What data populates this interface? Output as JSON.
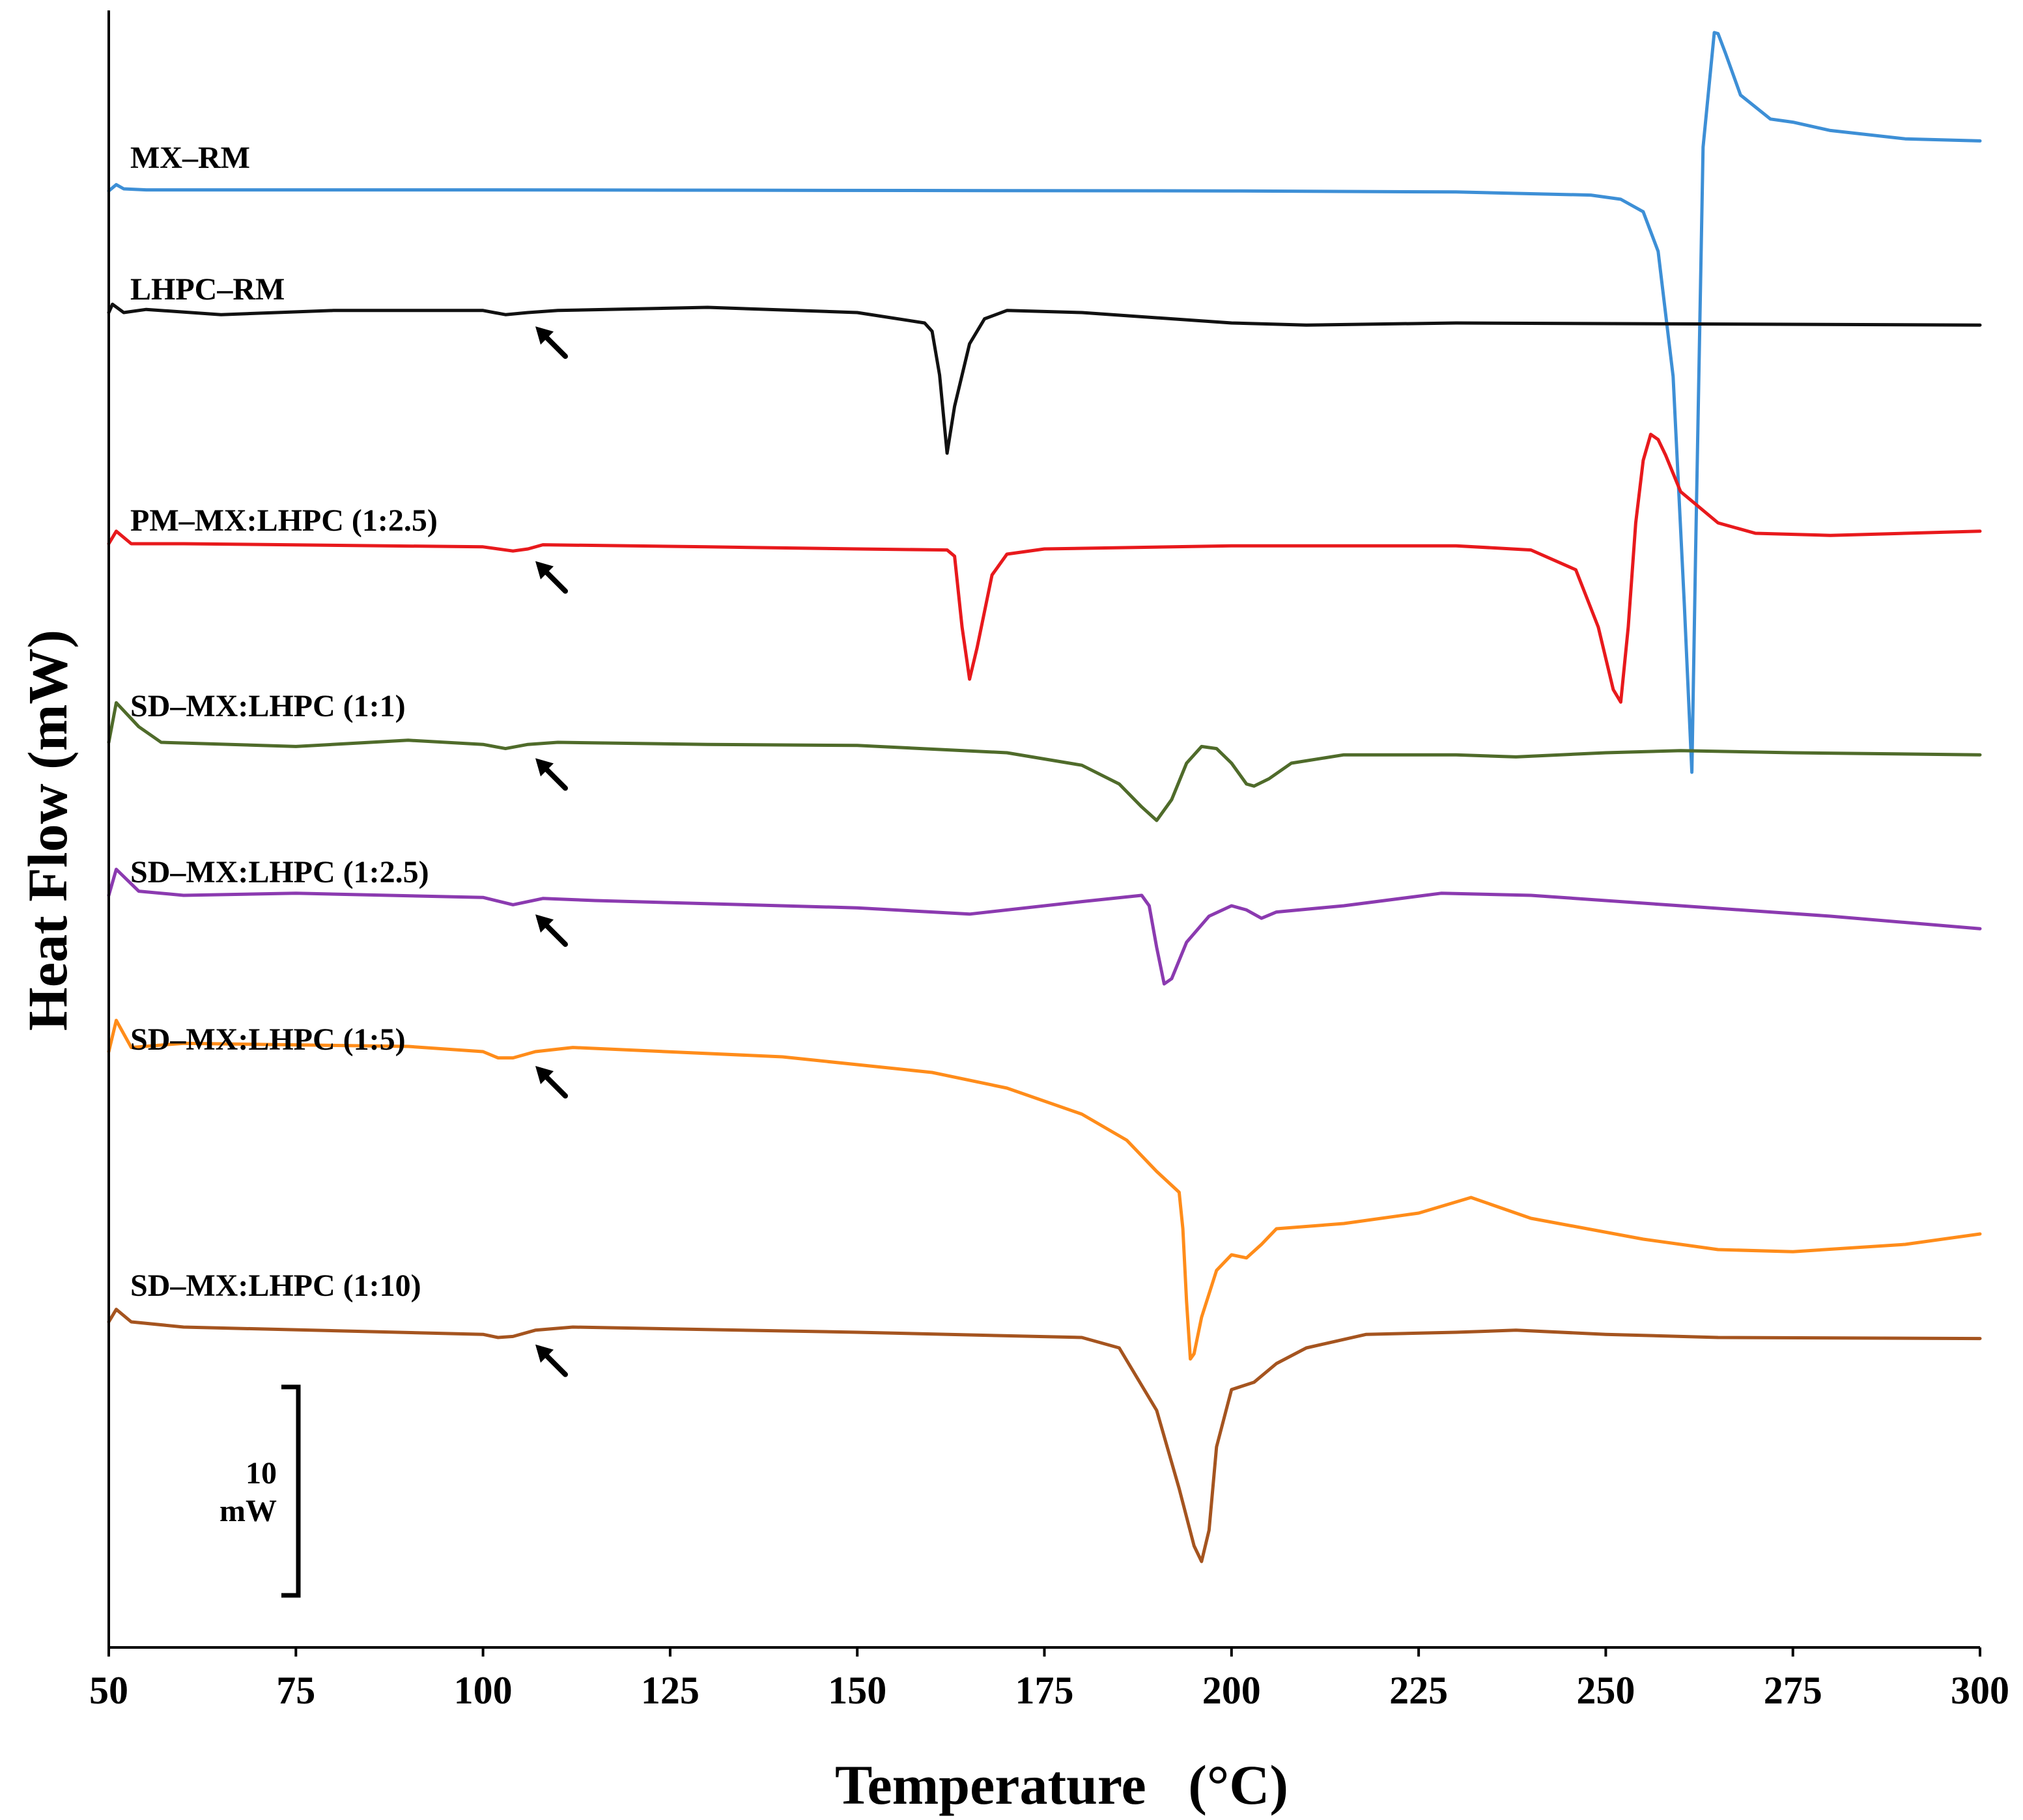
{
  "chart_data": {
    "type": "line",
    "title": "",
    "xlabel": "Temperature   (°C)",
    "ylabel": "Heat Flow (mW)",
    "xlim": [
      50,
      300
    ],
    "xticks": [
      "50",
      "75",
      "100",
      "125",
      "150",
      "175",
      "200",
      "225",
      "250",
      "275",
      "300"
    ],
    "y_ticks_shown": false,
    "legend": "inline labels at left of each curve",
    "scale_bar": {
      "value": 10,
      "unit": "mW",
      "label_top": "10",
      "label_bottom": "mW"
    },
    "series": [
      {
        "name": "MX-RM",
        "label": "MX–RM",
        "color": "#3d8fd6",
        "points": [
          [
            50,
            -2
          ],
          [
            51,
            4
          ],
          [
            52,
            0
          ],
          [
            55,
            -1
          ],
          [
            100,
            -1
          ],
          [
            200,
            -2
          ],
          [
            230,
            -3
          ],
          [
            248,
            -6
          ],
          [
            252,
            -10
          ],
          [
            255,
            -22
          ],
          [
            257,
            -60
          ],
          [
            259,
            -180
          ],
          [
            260.5,
            -400
          ],
          [
            261.5,
            -560
          ],
          [
            262,
            -350
          ],
          [
            263,
            40
          ],
          [
            264.5,
            150
          ],
          [
            265,
            149
          ],
          [
            266,
            130
          ],
          [
            268,
            90
          ],
          [
            272,
            67
          ],
          [
            275,
            64
          ],
          [
            280,
            56
          ],
          [
            290,
            48
          ],
          [
            300,
            46
          ]
        ],
        "arrows_at_x": []
      },
      {
        "name": "LHPC-RM",
        "label": "LHPC–RM",
        "color": "#111111",
        "points": [
          [
            50,
            0
          ],
          [
            50.5,
            8
          ],
          [
            52,
            0
          ],
          [
            55,
            3
          ],
          [
            65,
            -2
          ],
          [
            80,
            2
          ],
          [
            100,
            2
          ],
          [
            103,
            -2
          ],
          [
            106,
            0
          ],
          [
            110,
            2
          ],
          [
            130,
            5
          ],
          [
            150,
            0
          ],
          [
            159,
            -10
          ],
          [
            160,
            -18
          ],
          [
            161,
            -60
          ],
          [
            162,
            -135
          ],
          [
            163,
            -90
          ],
          [
            165,
            -30
          ],
          [
            167,
            -6
          ],
          [
            170,
            2
          ],
          [
            180,
            0
          ],
          [
            200,
            -10
          ],
          [
            210,
            -12
          ],
          [
            230,
            -10
          ],
          [
            300,
            -12
          ]
        ],
        "arrows_at_x": [
          107
        ]
      },
      {
        "name": "PM-MX:LHPC (1:2.5)",
        "label": "PM–MX:LHPC (1:2.5)",
        "color": "#e8191c",
        "points": [
          [
            50,
            0
          ],
          [
            51,
            12
          ],
          [
            53,
            0
          ],
          [
            60,
            0
          ],
          [
            100,
            -3
          ],
          [
            104,
            -7
          ],
          [
            106,
            -5
          ],
          [
            108,
            -1
          ],
          [
            130,
            -3
          ],
          [
            150,
            -5
          ],
          [
            162,
            -6
          ],
          [
            163,
            -12
          ],
          [
            164,
            -80
          ],
          [
            165,
            -130
          ],
          [
            166,
            -100
          ],
          [
            168,
            -30
          ],
          [
            170,
            -10
          ],
          [
            175,
            -5
          ],
          [
            200,
            -2
          ],
          [
            230,
            -2
          ],
          [
            240,
            -6
          ],
          [
            246,
            -25
          ],
          [
            249,
            -80
          ],
          [
            251,
            -140
          ],
          [
            252,
            -152
          ],
          [
            253,
            -80
          ],
          [
            254,
            20
          ],
          [
            255,
            80
          ],
          [
            256,
            105
          ],
          [
            257,
            100
          ],
          [
            258,
            85
          ],
          [
            260,
            50
          ],
          [
            265,
            20
          ],
          [
            270,
            10
          ],
          [
            280,
            8
          ],
          [
            300,
            12
          ]
        ],
        "arrows_at_x": [
          107
        ]
      },
      {
        "name": "SD-MX:LHPC (1:1)",
        "label": "SD–MX:LHPC (1:1)",
        "color": "#4f6b2a",
        "points": [
          [
            50,
            0
          ],
          [
            51,
            38
          ],
          [
            54,
            15
          ],
          [
            57,
            0
          ],
          [
            75,
            -4
          ],
          [
            90,
            2
          ],
          [
            100,
            -2
          ],
          [
            103,
            -6
          ],
          [
            106,
            -2
          ],
          [
            110,
            0
          ],
          [
            130,
            -2
          ],
          [
            150,
            -3
          ],
          [
            170,
            -10
          ],
          [
            180,
            -22
          ],
          [
            185,
            -40
          ],
          [
            188,
            -62
          ],
          [
            190,
            -75
          ],
          [
            192,
            -55
          ],
          [
            194,
            -20
          ],
          [
            196,
            -4
          ],
          [
            198,
            -6
          ],
          [
            200,
            -20
          ],
          [
            202,
            -40
          ],
          [
            203,
            -42
          ],
          [
            205,
            -35
          ],
          [
            208,
            -20
          ],
          [
            215,
            -12
          ],
          [
            230,
            -12
          ],
          [
            238,
            -14
          ],
          [
            250,
            -10
          ],
          [
            260,
            -8
          ],
          [
            275,
            -10
          ],
          [
            300,
            -12
          ]
        ],
        "arrows_at_x": [
          107
        ]
      },
      {
        "name": "SD-MX:LHPC (1:2.5)",
        "label": "SD–MX:LHPC (1:2.5)",
        "color": "#8b3ab0",
        "points": [
          [
            50,
            0
          ],
          [
            51,
            25
          ],
          [
            54,
            4
          ],
          [
            60,
            0
          ],
          [
            75,
            2
          ],
          [
            100,
            -2
          ],
          [
            104,
            -9
          ],
          [
            108,
            -3
          ],
          [
            115,
            -5
          ],
          [
            150,
            -12
          ],
          [
            165,
            -18
          ],
          [
            180,
            -6
          ],
          [
            188,
            0
          ],
          [
            189,
            -10
          ],
          [
            190,
            -50
          ],
          [
            191,
            -85
          ],
          [
            192,
            -80
          ],
          [
            194,
            -45
          ],
          [
            197,
            -20
          ],
          [
            200,
            -10
          ],
          [
            202,
            -14
          ],
          [
            204,
            -22
          ],
          [
            206,
            -16
          ],
          [
            215,
            -10
          ],
          [
            228,
            2
          ],
          [
            240,
            0
          ],
          [
            260,
            -10
          ],
          [
            280,
            -20
          ],
          [
            300,
            -32
          ]
        ],
        "arrows_at_x": [
          107
        ]
      },
      {
        "name": "SD-MX:LHPC (1:5)",
        "label": "SD–MX:LHPC (1:5)",
        "color": "#ff8c1a",
        "points": [
          [
            50,
            0
          ],
          [
            51,
            30
          ],
          [
            53,
            4
          ],
          [
            60,
            8
          ],
          [
            90,
            5
          ],
          [
            100,
            0
          ],
          [
            102,
            -6
          ],
          [
            104,
            -6
          ],
          [
            107,
            0
          ],
          [
            112,
            4
          ],
          [
            140,
            -5
          ],
          [
            160,
            -20
          ],
          [
            170,
            -35
          ],
          [
            180,
            -60
          ],
          [
            186,
            -85
          ],
          [
            190,
            -115
          ],
          [
            193,
            -135
          ],
          [
            193.5,
            -170
          ],
          [
            194,
            -240
          ],
          [
            194.5,
            -295
          ],
          [
            195,
            -290
          ],
          [
            196,
            -255
          ],
          [
            198,
            -210
          ],
          [
            200,
            -195
          ],
          [
            202,
            -198
          ],
          [
            204,
            -185
          ],
          [
            206,
            -170
          ],
          [
            215,
            -165
          ],
          [
            225,
            -155
          ],
          [
            232,
            -140
          ],
          [
            240,
            -160
          ],
          [
            255,
            -180
          ],
          [
            265,
            -190
          ],
          [
            275,
            -192
          ],
          [
            290,
            -185
          ],
          [
            300,
            -175
          ]
        ],
        "arrows_at_x": [
          107
        ]
      },
      {
        "name": "SD-MX:LHPC (1:10)",
        "label": "SD–MX:LHPC (1:10)",
        "color": "#a5541f",
        "points": [
          [
            50,
            0
          ],
          [
            51,
            12
          ],
          [
            53,
            0
          ],
          [
            60,
            -5
          ],
          [
            100,
            -12
          ],
          [
            102,
            -15
          ],
          [
            104,
            -14
          ],
          [
            107,
            -8
          ],
          [
            112,
            -5
          ],
          [
            150,
            -10
          ],
          [
            180,
            -15
          ],
          [
            185,
            -25
          ],
          [
            190,
            -85
          ],
          [
            193,
            -160
          ],
          [
            195,
            -215
          ],
          [
            196,
            -230
          ],
          [
            197,
            -200
          ],
          [
            198,
            -120
          ],
          [
            200,
            -65
          ],
          [
            203,
            -58
          ],
          [
            206,
            -40
          ],
          [
            210,
            -25
          ],
          [
            218,
            -12
          ],
          [
            230,
            -10
          ],
          [
            238,
            -8
          ],
          [
            250,
            -12
          ],
          [
            265,
            -15
          ],
          [
            300,
            -16
          ]
        ],
        "arrows_at_x": [
          107
        ]
      }
    ]
  }
}
